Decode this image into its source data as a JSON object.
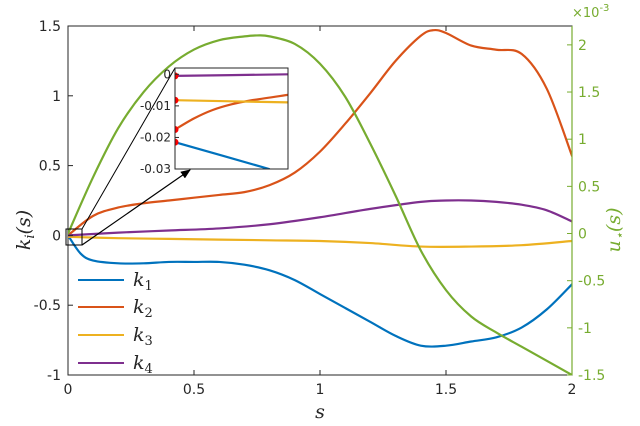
{
  "chart_data": {
    "type": "line",
    "xlabel": "s",
    "ylabel_left": "k_i(s)",
    "ylabel_right": "u_⋆(s)",
    "xlim": [
      0,
      2
    ],
    "ylim_left": [
      -1,
      1.5
    ],
    "ylim_right": [
      -1.5,
      2.2
    ],
    "right_axis_exponent": "×10^-3",
    "x_ticks": [
      "0",
      "0.5",
      "1",
      "1.5",
      "2"
    ],
    "x_tick_values": [
      0,
      0.5,
      1,
      1.5,
      2
    ],
    "left_ticks": [
      "1.5",
      "1",
      "0.5",
      "0",
      "-0.5",
      "-1"
    ],
    "left_tick_values": [
      1.5,
      1,
      0.5,
      0,
      -0.5,
      -1
    ],
    "right_ticks": [
      "2",
      "1.5",
      "1",
      "0.5",
      "0",
      "-0.5",
      "-1",
      "-1.5"
    ],
    "right_tick_values": [
      2,
      1.5,
      1,
      0.5,
      0,
      -0.5,
      -1,
      -1.5
    ],
    "grid": false,
    "legend_position": "bottom-left",
    "series": [
      {
        "name": "k_1",
        "axis": "left",
        "color": "#0072bd",
        "x": [
          0,
          0.05,
          0.1,
          0.2,
          0.3,
          0.4,
          0.5,
          0.6,
          0.7,
          0.8,
          0.9,
          1.0,
          1.1,
          1.2,
          1.3,
          1.4,
          1.5,
          1.6,
          1.7,
          1.8,
          1.9,
          2.0
        ],
        "y": [
          0,
          -0.13,
          -0.18,
          -0.2,
          -0.2,
          -0.19,
          -0.19,
          -0.19,
          -0.21,
          -0.25,
          -0.32,
          -0.42,
          -0.52,
          -0.62,
          -0.72,
          -0.79,
          -0.79,
          -0.76,
          -0.73,
          -0.66,
          -0.53,
          -0.35
        ]
      },
      {
        "name": "k_2",
        "axis": "left",
        "color": "#d95319",
        "x": [
          0,
          0.1,
          0.2,
          0.3,
          0.4,
          0.5,
          0.6,
          0.7,
          0.8,
          0.9,
          1.0,
          1.1,
          1.2,
          1.3,
          1.4,
          1.45,
          1.5,
          1.6,
          1.7,
          1.8,
          1.9,
          2.0
        ],
        "y": [
          0,
          0.14,
          0.2,
          0.23,
          0.25,
          0.27,
          0.29,
          0.31,
          0.36,
          0.45,
          0.6,
          0.8,
          1.02,
          1.25,
          1.43,
          1.47,
          1.45,
          1.36,
          1.33,
          1.3,
          1.05,
          0.57
        ]
      },
      {
        "name": "k_3",
        "axis": "left",
        "color": "#edb120",
        "x": [
          0,
          0.2,
          0.4,
          0.6,
          0.8,
          1.0,
          1.2,
          1.4,
          1.6,
          1.8,
          2.0
        ],
        "y": [
          -0.01,
          -0.02,
          -0.025,
          -0.03,
          -0.035,
          -0.04,
          -0.055,
          -0.08,
          -0.08,
          -0.07,
          -0.04
        ]
      },
      {
        "name": "k_4",
        "axis": "left",
        "color": "#7e2f8e",
        "x": [
          0,
          0.2,
          0.4,
          0.6,
          0.8,
          1.0,
          1.2,
          1.4,
          1.5,
          1.6,
          1.7,
          1.8,
          1.9,
          2.0
        ],
        "y": [
          0,
          0.02,
          0.035,
          0.05,
          0.08,
          0.13,
          0.19,
          0.24,
          0.25,
          0.25,
          0.24,
          0.22,
          0.18,
          0.1
        ]
      },
      {
        "name": "u_⋆",
        "axis": "right",
        "color": "#77ac30",
        "x": [
          0,
          0.1,
          0.2,
          0.3,
          0.4,
          0.5,
          0.6,
          0.7,
          0.75,
          0.8,
          0.9,
          1.0,
          1.1,
          1.2,
          1.3,
          1.4,
          1.5,
          1.6,
          1.7,
          1.8,
          1.9,
          2.0
        ],
        "y": [
          0,
          0.6,
          1.12,
          1.5,
          1.77,
          1.95,
          2.05,
          2.09,
          2.1,
          2.09,
          2.01,
          1.8,
          1.45,
          0.95,
          0.4,
          -0.18,
          -0.6,
          -0.88,
          -1.05,
          -1.2,
          -1.35,
          -1.5
        ]
      }
    ],
    "inset": {
      "xlim": [
        0,
        0.06
      ],
      "ylim": [
        -0.03,
        0.002
      ],
      "y_ticks": [
        "0",
        "-0.01",
        "-0.02",
        "-0.03"
      ],
      "y_tick_values": [
        0,
        -0.01,
        -0.02,
        -0.03
      ],
      "series": [
        {
          "name": "k_1",
          "color": "#0072bd",
          "x": [
            0,
            0.05
          ],
          "y": [
            -0.0215,
            -0.03
          ]
        },
        {
          "name": "k_2",
          "color": "#d95319",
          "x": [
            0,
            0.01,
            0.02,
            0.03,
            0.04,
            0.06
          ],
          "y": [
            -0.0175,
            -0.014,
            -0.0113,
            -0.0095,
            -0.0083,
            -0.0065
          ]
        },
        {
          "name": "k_3",
          "color": "#edb120",
          "x": [
            0,
            0.06
          ],
          "y": [
            -0.0082,
            -0.0089
          ]
        },
        {
          "name": "k_4",
          "color": "#7e2f8e",
          "x": [
            0,
            0.06
          ],
          "y": [
            -0.0005,
            0.0
          ]
        }
      ],
      "markers": {
        "color": "#ff0000",
        "x": [
          0,
          0,
          0,
          0
        ],
        "y": [
          -0.0005,
          -0.0082,
          -0.0175,
          -0.0215
        ]
      }
    }
  },
  "legend": [
    {
      "base": "k",
      "sub": "1"
    },
    {
      "base": "k",
      "sub": "2"
    },
    {
      "base": "k",
      "sub": "3"
    },
    {
      "base": "k",
      "sub": "4"
    }
  ],
  "labels": {
    "x_axis": "s",
    "y_left_base": "k",
    "y_left_sub": "i",
    "y_left_arg": "(s)",
    "y_right_base": "u",
    "y_right_sub": "⋆",
    "y_right_arg": "(s)",
    "exponent_base": "×10",
    "exponent_power": "-3"
  },
  "colors": {
    "axis": "#262626",
    "right_axis": "#77ac30",
    "marker": "#ff0000"
  }
}
